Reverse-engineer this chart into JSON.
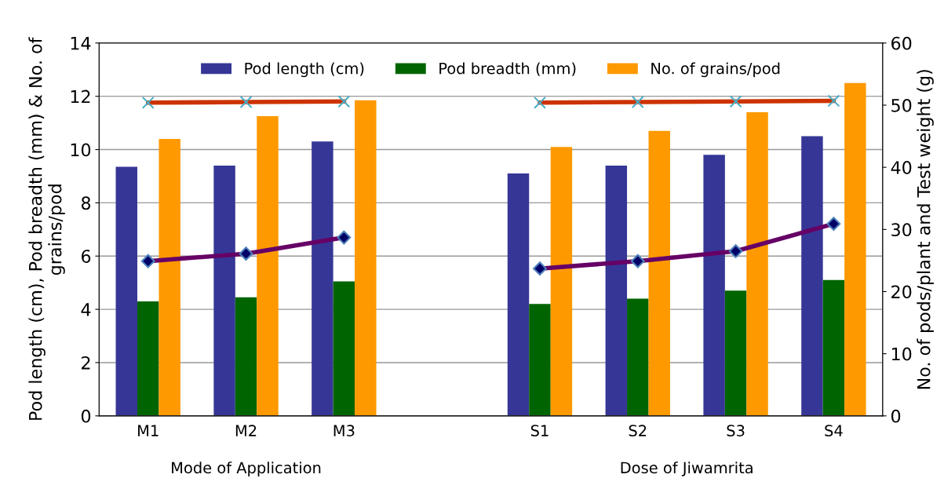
{
  "chart_data": {
    "type": "bar",
    "categories": [
      "M1",
      "M2",
      "M3",
      null,
      "S1",
      "S2",
      "S3",
      "S4"
    ],
    "ylabel": "Pod length (cm), Pod breadth (mm) & No. of grains/pod",
    "y2label": "No. of pods/plant and Test weight (g)",
    "ylim": [
      0,
      14
    ],
    "yticks": [
      0,
      2,
      4,
      6,
      8,
      10,
      12,
      14
    ],
    "y2lim": [
      0,
      60
    ],
    "y2ticks": [
      0,
      10,
      20,
      30,
      40,
      50,
      60
    ],
    "grid": "y",
    "legend": "top",
    "annotations": [
      "Mode of Application",
      "Dose of Jiwamrita"
    ],
    "series": [
      {
        "name": "Pod length (cm)",
        "color": "#363696",
        "values": [
          9.35,
          9.4,
          10.3,
          null,
          9.1,
          9.4,
          9.8,
          10.5
        ]
      },
      {
        "name": "Pod breadth (mm)",
        "color": "#006400",
        "values": [
          4.3,
          4.45,
          5.05,
          null,
          4.2,
          4.4,
          4.7,
          5.1
        ]
      },
      {
        "name": "No. of grains/pod",
        "color": "#ff9900",
        "values": [
          10.4,
          11.25,
          11.85,
          null,
          10.1,
          10.7,
          11.4,
          12.5
        ]
      },
      {
        "type": "line",
        "axis": "y2",
        "color": "#cc3300",
        "marker": "cross",
        "values": [
          50.4,
          50.5,
          50.6,
          null,
          50.4,
          50.5,
          50.6,
          50.7
        ]
      },
      {
        "type": "line",
        "axis": "y2",
        "color": "#660066",
        "marker": "diamond",
        "values": [
          24.9,
          26.1,
          28.7,
          null,
          23.7,
          24.9,
          26.5,
          30.9
        ]
      }
    ]
  }
}
